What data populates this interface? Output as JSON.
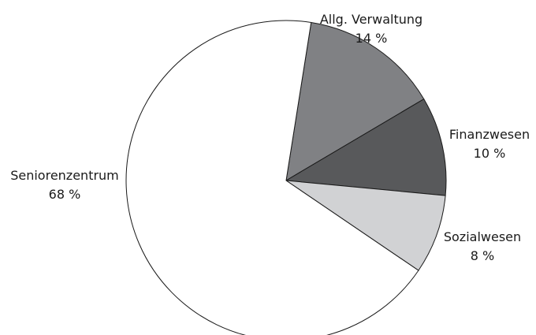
{
  "chart_data": {
    "type": "pie",
    "title": "",
    "start_angle_deg": -81,
    "direction": "clockwise",
    "slices": [
      {
        "label": "Allg. Verwaltung",
        "value_label": "14 %",
        "value": 14,
        "color": "#808184"
      },
      {
        "label": "Finanzwesen",
        "value_label": "10 %",
        "value": 10,
        "color": "#58595b"
      },
      {
        "label": "Sozialwesen",
        "value_label": "8 %",
        "value": 8,
        "color": "#d1d2d4"
      },
      {
        "label": "Seniorenzentrum",
        "value_label": "68 %",
        "value": 68,
        "color": "#ffffff"
      }
    ],
    "legend": "none"
  }
}
